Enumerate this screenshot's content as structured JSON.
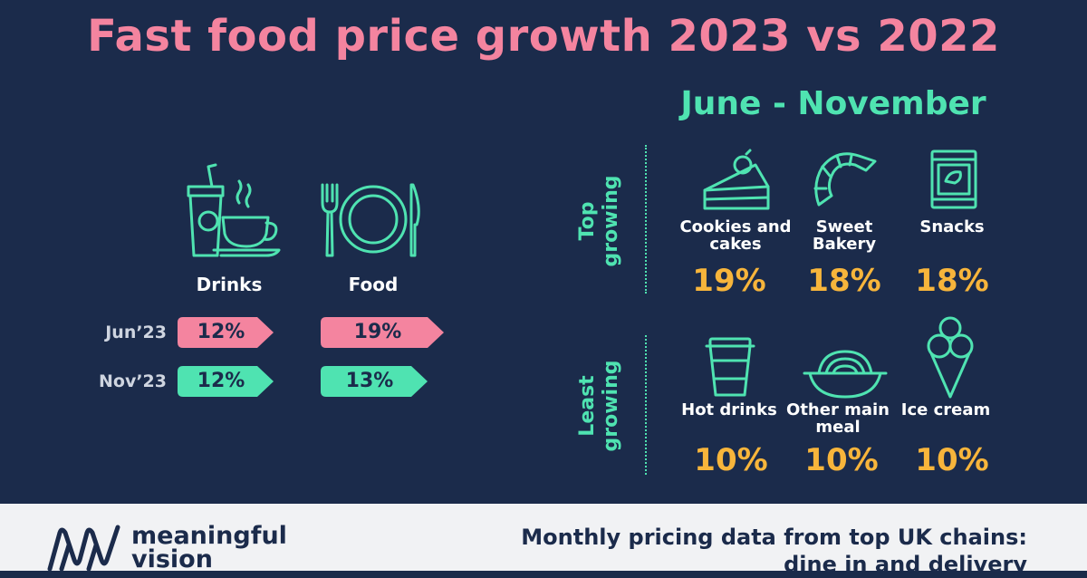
{
  "title": "Fast food price growth 2023 vs 2022",
  "comparison": {
    "columns": [
      "Drinks",
      "Food"
    ],
    "rows": [
      {
        "label": "Jun’23",
        "values": [
          "12%",
          "19%"
        ],
        "color": "#f4849f"
      },
      {
        "label": "Nov’23",
        "values": [
          "12%",
          "13%"
        ],
        "color": "#4fe3b1"
      }
    ],
    "levels": {
      "drinks_jun": 12,
      "food_jun": 19,
      "drinks_nov": 12,
      "food_nov": 13
    }
  },
  "period": "June - November",
  "top_growing": {
    "label_line1": "Top",
    "label_line2": "growing",
    "items": [
      {
        "label_line1": "Cookies and",
        "label_line2": "cakes",
        "value": "19%",
        "icon": "cake-slice-icon"
      },
      {
        "label_line1": "Sweet",
        "label_line2": "Bakery",
        "value": "18%",
        "icon": "croissant-icon"
      },
      {
        "label_line1": "Snacks",
        "label_line2": "",
        "value": "18%",
        "icon": "snack-bag-icon"
      }
    ]
  },
  "least_growing": {
    "label_line1": "Least",
    "label_line2": "growing",
    "items": [
      {
        "label_line1": "Hot drinks",
        "label_line2": "",
        "value": "10%",
        "icon": "coffee-cup-icon"
      },
      {
        "label_line1": "Other main",
        "label_line2": "meal",
        "value": "10%",
        "icon": "noodle-bowl-icon"
      },
      {
        "label_line1": "Ice cream",
        "label_line2": "",
        "value": "10%",
        "icon": "ice-cream-cone-icon"
      }
    ]
  },
  "footer": {
    "brand_line1": "meaningful",
    "brand_line2": "vision",
    "note_line1": "Monthly pricing data from top UK chains:",
    "note_line2": "dine in and delivery"
  },
  "colors": {
    "background": "#1b2b4b",
    "pink": "#f4849f",
    "green": "#4fe3b1",
    "orange": "#f7b53b",
    "footer": "#f1f2f4"
  }
}
